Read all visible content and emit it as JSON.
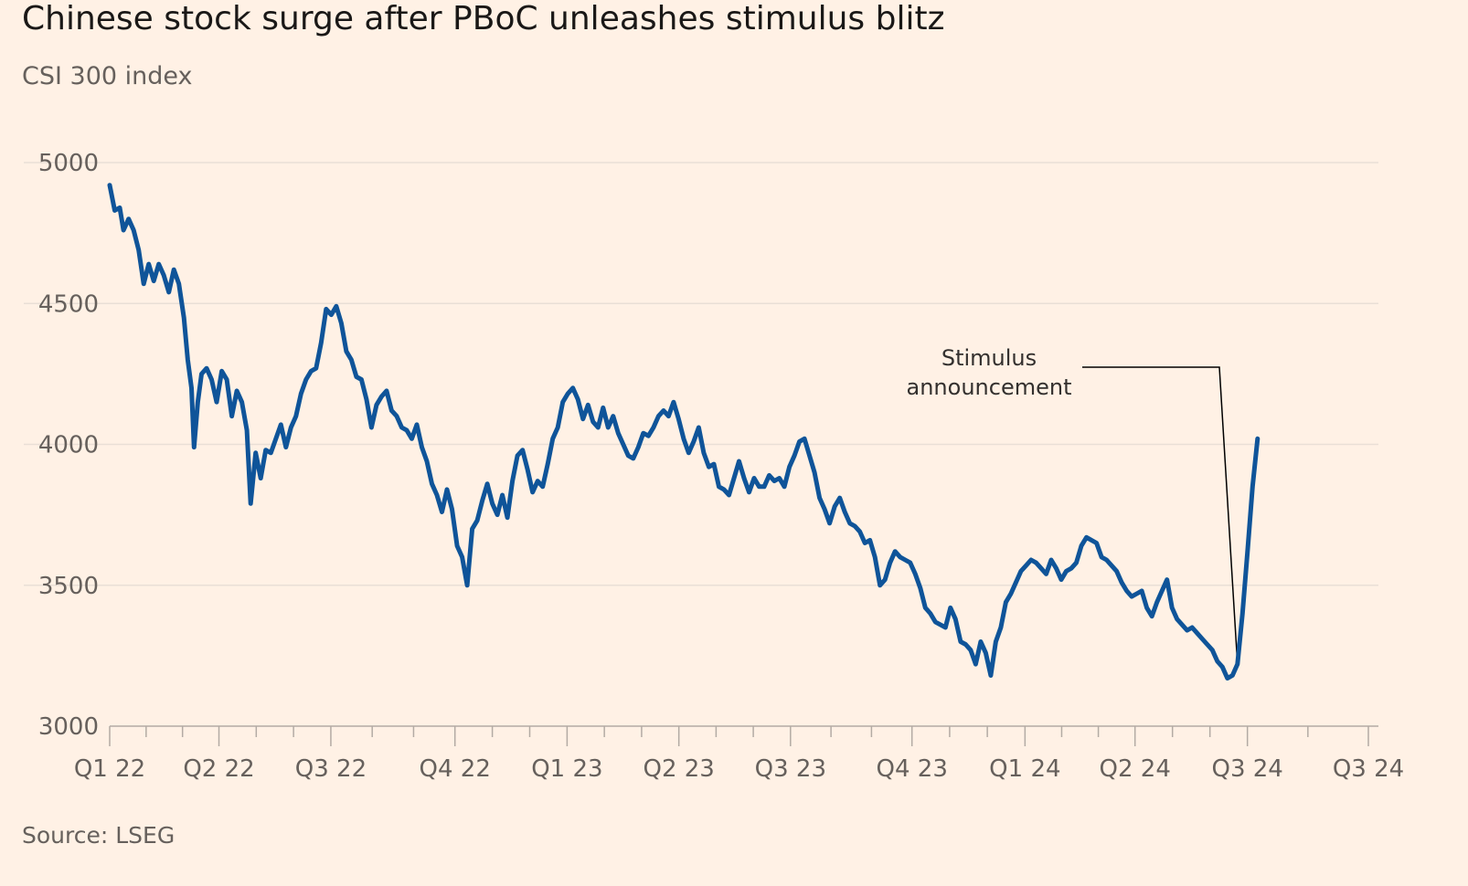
{
  "title": "Chinese stock surge after PBoC unleashes stimulus blitz",
  "subtitle": "CSI 300 index",
  "source": "Source: LSEG",
  "colors": {
    "background": "#fff1e5",
    "line": "#0f5499",
    "grid": "#e9dfd6",
    "text": "#66605c",
    "annotation_leader": "#000000"
  },
  "chart_data": {
    "type": "line",
    "title": "Chinese stock surge after PBoC unleashes stimulus blitz",
    "subtitle": "CSI 300 index",
    "xlabel": "",
    "ylabel": "",
    "ylim": [
      3000,
      5000
    ],
    "y_ticks": [
      5000,
      4500,
      4000,
      3500,
      3000
    ],
    "x_ticks": [
      {
        "label": "Q1 22",
        "t": 0
      },
      {
        "label": "Q2 22",
        "t": 0.0868
      },
      {
        "label": "Q3 22",
        "t": 0.1757
      },
      {
        "label": "Q4 22",
        "t": 0.2743
      },
      {
        "label": "Q1 23",
        "t": 0.3634
      },
      {
        "label": "Q2 23",
        "t": 0.4522
      },
      {
        "label": "Q3 23",
        "t": 0.5409
      },
      {
        "label": "Q4 23",
        "t": 0.6374
      },
      {
        "label": "Q1 24",
        "t": 0.7272
      },
      {
        "label": "Q2 24",
        "t": 0.8146
      },
      {
        "label": "Q3 24",
        "t": 0.9039
      },
      {
        "label": "Q3 24",
        "t": 1.0
      }
    ],
    "grid": true,
    "series": [
      {
        "values": [
          [
            0,
            4920
          ],
          [
            0.004,
            4830
          ],
          [
            0.008,
            4840
          ],
          [
            0.011,
            4760
          ],
          [
            0.015,
            4800
          ],
          [
            0.019,
            4760
          ],
          [
            0.023,
            4690
          ],
          [
            0.027,
            4570
          ],
          [
            0.031,
            4640
          ],
          [
            0.035,
            4580
          ],
          [
            0.039,
            4640
          ],
          [
            0.043,
            4600
          ],
          [
            0.047,
            4540
          ],
          [
            0.051,
            4620
          ],
          [
            0.055,
            4570
          ],
          [
            0.059,
            4450
          ],
          [
            0.062,
            4300
          ],
          [
            0.065,
            4200
          ],
          [
            0.067,
            3990
          ],
          [
            0.07,
            4150
          ],
          [
            0.073,
            4250
          ],
          [
            0.077,
            4270
          ],
          [
            0.081,
            4230
          ],
          [
            0.085,
            4150
          ],
          [
            0.089,
            4260
          ],
          [
            0.093,
            4230
          ],
          [
            0.097,
            4100
          ],
          [
            0.101,
            4190
          ],
          [
            0.105,
            4150
          ],
          [
            0.109,
            4050
          ],
          [
            0.112,
            3790
          ],
          [
            0.116,
            3970
          ],
          [
            0.12,
            3880
          ],
          [
            0.124,
            3980
          ],
          [
            0.128,
            3970
          ],
          [
            0.132,
            4020
          ],
          [
            0.136,
            4070
          ],
          [
            0.14,
            3990
          ],
          [
            0.144,
            4060
          ],
          [
            0.148,
            4100
          ],
          [
            0.152,
            4180
          ],
          [
            0.156,
            4230
          ],
          [
            0.16,
            4260
          ],
          [
            0.164,
            4270
          ],
          [
            0.168,
            4360
          ],
          [
            0.172,
            4480
          ],
          [
            0.176,
            4460
          ],
          [
            0.18,
            4490
          ],
          [
            0.184,
            4430
          ],
          [
            0.188,
            4330
          ],
          [
            0.192,
            4300
          ],
          [
            0.196,
            4240
          ],
          [
            0.2,
            4230
          ],
          [
            0.204,
            4160
          ],
          [
            0.208,
            4060
          ],
          [
            0.212,
            4140
          ],
          [
            0.216,
            4170
          ],
          [
            0.22,
            4190
          ],
          [
            0.224,
            4120
          ],
          [
            0.228,
            4100
          ],
          [
            0.232,
            4060
          ],
          [
            0.236,
            4050
          ],
          [
            0.24,
            4020
          ],
          [
            0.244,
            4070
          ],
          [
            0.248,
            3990
          ],
          [
            0.252,
            3940
          ],
          [
            0.256,
            3860
          ],
          [
            0.26,
            3820
          ],
          [
            0.264,
            3760
          ],
          [
            0.268,
            3840
          ],
          [
            0.272,
            3770
          ],
          [
            0.276,
            3640
          ],
          [
            0.28,
            3600
          ],
          [
            0.284,
            3500
          ],
          [
            0.288,
            3700
          ],
          [
            0.292,
            3730
          ],
          [
            0.296,
            3800
          ],
          [
            0.3,
            3860
          ],
          [
            0.304,
            3790
          ],
          [
            0.308,
            3750
          ],
          [
            0.312,
            3820
          ],
          [
            0.316,
            3740
          ],
          [
            0.32,
            3870
          ],
          [
            0.324,
            3960
          ],
          [
            0.328,
            3980
          ],
          [
            0.332,
            3910
          ],
          [
            0.336,
            3830
          ],
          [
            0.34,
            3870
          ],
          [
            0.344,
            3850
          ],
          [
            0.348,
            3930
          ],
          [
            0.352,
            4020
          ],
          [
            0.356,
            4060
          ],
          [
            0.36,
            4150
          ],
          [
            0.364,
            4180
          ],
          [
            0.368,
            4200
          ],
          [
            0.372,
            4160
          ],
          [
            0.376,
            4090
          ],
          [
            0.38,
            4140
          ],
          [
            0.384,
            4080
          ],
          [
            0.388,
            4060
          ],
          [
            0.392,
            4130
          ],
          [
            0.396,
            4060
          ],
          [
            0.4,
            4100
          ],
          [
            0.404,
            4040
          ],
          [
            0.408,
            4000
          ],
          [
            0.412,
            3960
          ],
          [
            0.416,
            3950
          ],
          [
            0.42,
            3990
          ],
          [
            0.424,
            4040
          ],
          [
            0.428,
            4030
          ],
          [
            0.432,
            4060
          ],
          [
            0.436,
            4100
          ],
          [
            0.44,
            4120
          ],
          [
            0.444,
            4100
          ],
          [
            0.448,
            4150
          ],
          [
            0.452,
            4090
          ],
          [
            0.456,
            4020
          ],
          [
            0.46,
            3970
          ],
          [
            0.464,
            4010
          ],
          [
            0.468,
            4060
          ],
          [
            0.472,
            3970
          ],
          [
            0.476,
            3920
          ],
          [
            0.48,
            3930
          ],
          [
            0.484,
            3850
          ],
          [
            0.488,
            3840
          ],
          [
            0.492,
            3820
          ],
          [
            0.496,
            3880
          ],
          [
            0.5,
            3940
          ],
          [
            0.504,
            3880
          ],
          [
            0.508,
            3830
          ],
          [
            0.512,
            3880
          ],
          [
            0.516,
            3850
          ],
          [
            0.52,
            3850
          ],
          [
            0.524,
            3890
          ],
          [
            0.528,
            3870
          ],
          [
            0.532,
            3880
          ],
          [
            0.536,
            3850
          ],
          [
            0.54,
            3920
          ],
          [
            0.544,
            3960
          ],
          [
            0.548,
            4010
          ],
          [
            0.552,
            4020
          ],
          [
            0.556,
            3960
          ],
          [
            0.56,
            3900
          ],
          [
            0.564,
            3810
          ],
          [
            0.568,
            3770
          ],
          [
            0.572,
            3720
          ],
          [
            0.576,
            3780
          ],
          [
            0.58,
            3810
          ],
          [
            0.584,
            3760
          ],
          [
            0.588,
            3720
          ],
          [
            0.592,
            3710
          ],
          [
            0.596,
            3690
          ],
          [
            0.6,
            3650
          ],
          [
            0.604,
            3660
          ],
          [
            0.608,
            3600
          ],
          [
            0.612,
            3500
          ],
          [
            0.616,
            3520
          ],
          [
            0.62,
            3580
          ],
          [
            0.624,
            3620
          ],
          [
            0.628,
            3600
          ],
          [
            0.632,
            3590
          ],
          [
            0.636,
            3580
          ],
          [
            0.64,
            3540
          ],
          [
            0.644,
            3490
          ],
          [
            0.648,
            3420
          ],
          [
            0.652,
            3400
          ],
          [
            0.656,
            3370
          ],
          [
            0.66,
            3360
          ],
          [
            0.664,
            3350
          ],
          [
            0.668,
            3420
          ],
          [
            0.672,
            3380
          ],
          [
            0.676,
            3300
          ],
          [
            0.68,
            3290
          ],
          [
            0.684,
            3270
          ],
          [
            0.688,
            3220
          ],
          [
            0.692,
            3300
          ],
          [
            0.696,
            3260
          ],
          [
            0.7,
            3180
          ],
          [
            0.704,
            3300
          ],
          [
            0.708,
            3350
          ],
          [
            0.712,
            3440
          ],
          [
            0.716,
            3470
          ],
          [
            0.72,
            3510
          ],
          [
            0.724,
            3550
          ],
          [
            0.728,
            3570
          ],
          [
            0.732,
            3590
          ],
          [
            0.736,
            3580
          ],
          [
            0.74,
            3560
          ],
          [
            0.744,
            3540
          ],
          [
            0.748,
            3590
          ],
          [
            0.752,
            3560
          ],
          [
            0.756,
            3520
          ],
          [
            0.76,
            3550
          ],
          [
            0.764,
            3560
          ],
          [
            0.768,
            3580
          ],
          [
            0.772,
            3640
          ],
          [
            0.776,
            3670
          ],
          [
            0.78,
            3660
          ],
          [
            0.784,
            3650
          ],
          [
            0.788,
            3600
          ],
          [
            0.792,
            3590
          ],
          [
            0.796,
            3570
          ],
          [
            0.8,
            3550
          ],
          [
            0.804,
            3510
          ],
          [
            0.808,
            3480
          ],
          [
            0.812,
            3460
          ],
          [
            0.816,
            3470
          ],
          [
            0.82,
            3480
          ],
          [
            0.824,
            3420
          ],
          [
            0.828,
            3390
          ],
          [
            0.832,
            3440
          ],
          [
            0.836,
            3480
          ],
          [
            0.84,
            3520
          ],
          [
            0.844,
            3420
          ],
          [
            0.848,
            3380
          ],
          [
            0.852,
            3360
          ],
          [
            0.856,
            3340
          ],
          [
            0.86,
            3350
          ],
          [
            0.864,
            3330
          ],
          [
            0.868,
            3310
          ],
          [
            0.872,
            3290
          ],
          [
            0.876,
            3270
          ],
          [
            0.88,
            3230
          ],
          [
            0.884,
            3210
          ],
          [
            0.888,
            3170
          ],
          [
            0.892,
            3180
          ],
          [
            0.896,
            3220
          ],
          [
            0.9,
            3400
          ],
          [
            0.904,
            3620
          ],
          [
            0.908,
            3850
          ],
          [
            0.912,
            4020
          ]
        ]
      }
    ],
    "annotations": [
      {
        "text": [
          "Stimulus",
          "announcement"
        ],
        "x_t": 0.896,
        "y": 3220
      }
    ]
  }
}
